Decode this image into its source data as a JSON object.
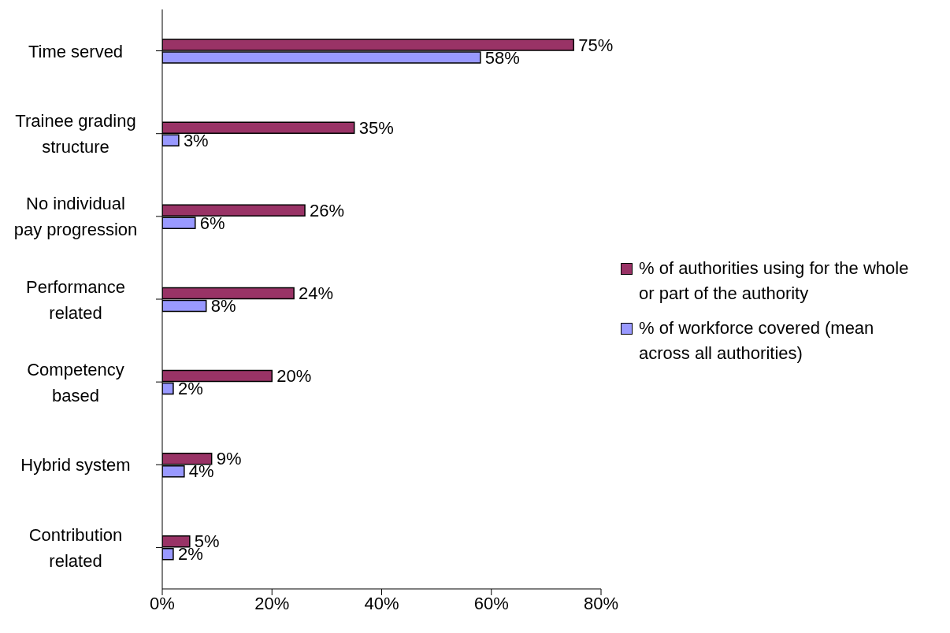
{
  "chart_data": {
    "type": "bar",
    "orientation": "horizontal",
    "categories": [
      "Time served",
      "Trainee grading structure",
      "No individual pay progression",
      "Performance related",
      "Competency based",
      "Hybrid system",
      "Contribution related"
    ],
    "series": [
      {
        "name": "% of authorities using for the whole or part of the authority",
        "color": "#993366",
        "values": [
          75,
          35,
          26,
          24,
          20,
          9,
          5
        ],
        "value_labels": [
          "75%",
          "35%",
          "26%",
          "24%",
          "20%",
          "9%",
          "5%"
        ]
      },
      {
        "name": "% of workforce covered (mean across all authorities)",
        "color": "#9999ff",
        "values": [
          58,
          3,
          6,
          8,
          2,
          4,
          2
        ],
        "value_labels": [
          "58%",
          "3%",
          "6%",
          "8%",
          "2%",
          "4%",
          "2%"
        ]
      }
    ],
    "xlim": [
      0,
      80
    ],
    "xticks": [
      {
        "value": 0,
        "label": "0%"
      },
      {
        "value": 20,
        "label": "20%"
      },
      {
        "value": 40,
        "label": "40%"
      },
      {
        "value": 60,
        "label": "60%"
      },
      {
        "value": 80,
        "label": "80%"
      }
    ],
    "grid": false,
    "legend": "right"
  }
}
